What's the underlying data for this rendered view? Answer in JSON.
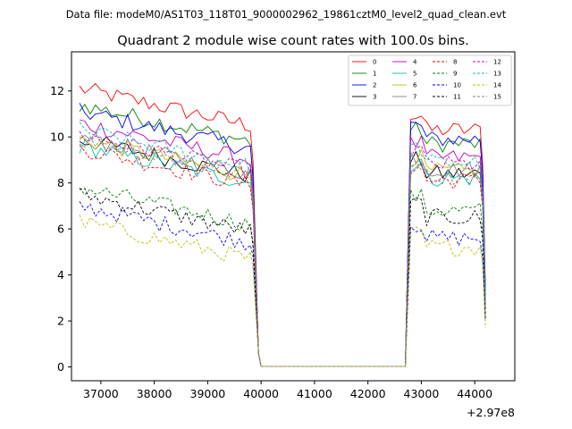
{
  "header": {
    "suptitle": "Data file: modeM0/AS1T03_118T01_9000002962_19861cztM0_level2_quad_clean.evt"
  },
  "chart_data": {
    "type": "line",
    "title": "Quadrant 2 module wise count rates with 100.0s bins.",
    "xlabel": "",
    "ylabel": "",
    "x_offset_label": "+2.97e8",
    "xlim": [
      36450,
      44750
    ],
    "ylim": [
      -0.6,
      13.7
    ],
    "xticks": [
      37000,
      38000,
      39000,
      40000,
      41000,
      42000,
      43000,
      44000
    ],
    "yticks": [
      0,
      2,
      4,
      6,
      8,
      10,
      12
    ],
    "xtick_labels": [
      "37000",
      "38000",
      "39000",
      "40000",
      "41000",
      "42000",
      "43000",
      "44000"
    ],
    "ytick_labels": [
      "0",
      "2",
      "4",
      "6",
      "8",
      "10",
      "12"
    ],
    "legend_position": "top-right",
    "segments": {
      "active1": [
        36600,
        39800
      ],
      "drop1": [
        39850,
        39950
      ],
      "gap": [
        40000,
        42700
      ],
      "active2": [
        42800,
        44100
      ],
      "drop2": [
        44150,
        44200
      ]
    },
    "series": [
      {
        "name": "0",
        "color": "#ff0000",
        "dash": "solid",
        "level1": 11.1,
        "level2": 10.3,
        "end": 3.4
      },
      {
        "name": "1",
        "color": "#008000",
        "dash": "solid",
        "level1": 10.4,
        "level2": 9.7,
        "end": 3.2
      },
      {
        "name": "2",
        "color": "#0000ff",
        "dash": "solid",
        "level1": 10.1,
        "level2": 9.9,
        "end": 3.3
      },
      {
        "name": "3",
        "color": "#000000",
        "dash": "solid",
        "level1": 8.9,
        "level2": 8.4,
        "end": 2.6
      },
      {
        "name": "4",
        "color": "#bf00bf",
        "dash": "solid",
        "level1": 9.6,
        "level2": 9.1,
        "end": 2.9
      },
      {
        "name": "5",
        "color": "#00bfbf",
        "dash": "solid",
        "level1": 8.6,
        "level2": 8.2,
        "end": 2.5
      },
      {
        "name": "6",
        "color": "#bfbf00",
        "dash": "solid",
        "level1": 8.9,
        "level2": 8.5,
        "end": 2.7
      },
      {
        "name": "7",
        "color": "#808080",
        "dash": "solid",
        "level1": 9.0,
        "level2": 8.6,
        "end": 2.8
      },
      {
        "name": "8",
        "color": "#ff0000",
        "dash": "dashed",
        "level1": 8.5,
        "level2": 8.1,
        "end": 2.5
      },
      {
        "name": "9",
        "color": "#008000",
        "dash": "dashed",
        "level1": 6.8,
        "level2": 6.8,
        "end": 2.2
      },
      {
        "name": "10",
        "color": "#0000ff",
        "dash": "dashed",
        "level1": 6.0,
        "level2": 5.6,
        "end": 2.0
      },
      {
        "name": "11",
        "color": "#000000",
        "dash": "dashed",
        "level1": 6.5,
        "level2": 6.5,
        "end": 2.1
      },
      {
        "name": "12",
        "color": "#bf00bf",
        "dash": "dashed",
        "level1": 9.1,
        "level2": 8.8,
        "end": 2.8
      },
      {
        "name": "13",
        "color": "#00bfbf",
        "dash": "dashed",
        "level1": 9.3,
        "level2": 8.9,
        "end": 2.9
      },
      {
        "name": "14",
        "color": "#bfbf00",
        "dash": "dashed",
        "level1": 5.3,
        "level2": 5.2,
        "end": 1.7
      },
      {
        "name": "15",
        "color": "#808080",
        "dash": "dashed",
        "level1": 8.9,
        "level2": 8.3,
        "end": 2.6
      }
    ]
  }
}
